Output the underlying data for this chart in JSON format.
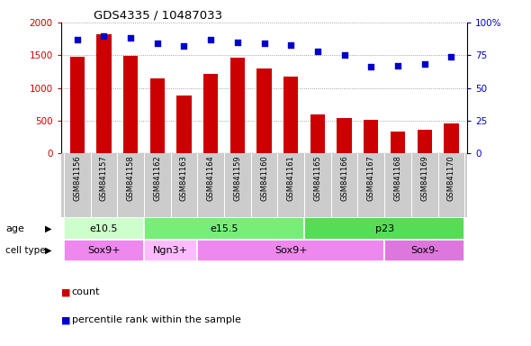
{
  "title": "GDS4335 / 10487033",
  "samples": [
    "GSM841156",
    "GSM841157",
    "GSM841158",
    "GSM841162",
    "GSM841163",
    "GSM841164",
    "GSM841159",
    "GSM841160",
    "GSM841161",
    "GSM841165",
    "GSM841166",
    "GSM841167",
    "GSM841168",
    "GSM841169",
    "GSM841170"
  ],
  "counts": [
    1480,
    1820,
    1490,
    1150,
    880,
    1220,
    1460,
    1300,
    1170,
    590,
    540,
    510,
    330,
    360,
    460
  ],
  "percentile": [
    87,
    90,
    88,
    84,
    82,
    87,
    85,
    84,
    83,
    78,
    75,
    66,
    67,
    68,
    74
  ],
  "ylim_left": [
    0,
    2000
  ],
  "ylim_right": [
    0,
    100
  ],
  "yticks_left": [
    0,
    500,
    1000,
    1500,
    2000
  ],
  "yticks_right": [
    0,
    25,
    50,
    75,
    100
  ],
  "bar_color": "#cc0000",
  "dot_color": "#0000cc",
  "age_groups": [
    {
      "label": "e10.5",
      "start": 0,
      "end": 3,
      "color": "#ccffcc"
    },
    {
      "label": "e15.5",
      "start": 3,
      "end": 9,
      "color": "#66ee66"
    },
    {
      "label": "p23",
      "start": 9,
      "end": 15,
      "color": "#44dd44"
    }
  ],
  "cell_type_groups": [
    {
      "label": "Sox9+",
      "start": 0,
      "end": 3,
      "color": "#ee88ee"
    },
    {
      "label": "Ngn3+",
      "start": 3,
      "end": 5,
      "color": "#ffbbff"
    },
    {
      "label": "Sox9+",
      "start": 5,
      "end": 12,
      "color": "#ee88ee"
    },
    {
      "label": "Sox9-",
      "start": 12,
      "end": 15,
      "color": "#dd77dd"
    }
  ],
  "legend_count_label": "count",
  "legend_pct_label": "percentile rank within the sample",
  "age_label": "age",
  "cell_type_label": "cell type",
  "bg_color": "#ffffff",
  "tick_area_bg": "#cccccc",
  "grid_color": "#888888",
  "spine_color": "#000000"
}
